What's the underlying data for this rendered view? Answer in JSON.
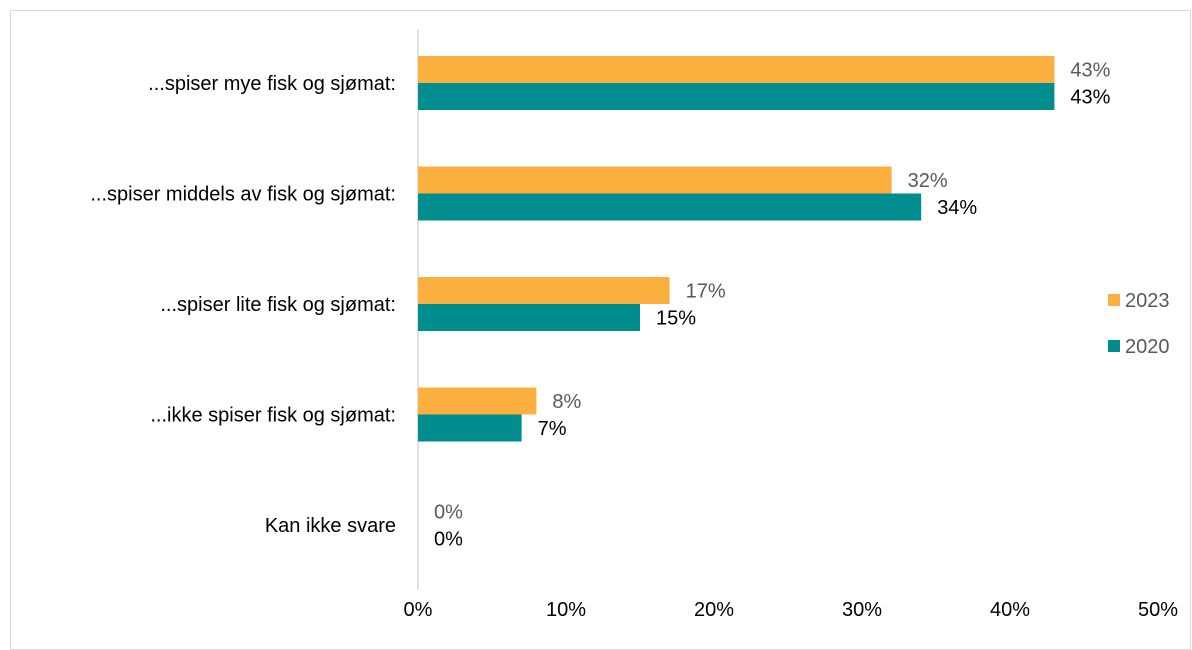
{
  "chart_data": {
    "type": "bar",
    "orientation": "horizontal",
    "categories": [
      "...spiser mye fisk og sjømat:",
      "...spiser middels av fisk og sjømat:",
      "...spiser lite fisk og sjømat:",
      "...ikke spiser fisk og sjømat:",
      "Kan ikke svare"
    ],
    "series": [
      {
        "name": "2023",
        "values": [
          43,
          32,
          17,
          8,
          0
        ],
        "labels": [
          "43%",
          "32%",
          "17%",
          "8%",
          "0%"
        ],
        "color": "#FBAF3F"
      },
      {
        "name": "2020",
        "values": [
          43,
          34,
          15,
          7,
          0
        ],
        "labels": [
          "43%",
          "34%",
          "15%",
          "7%",
          "0%"
        ],
        "color": "#008D8F"
      }
    ],
    "xlim": [
      0,
      50
    ],
    "xticks": [
      "0%",
      "10%",
      "20%",
      "30%",
      "40%",
      "50%"
    ],
    "title": "",
    "xlabel": "",
    "ylabel": "",
    "grid": false,
    "legend_position": "right"
  }
}
